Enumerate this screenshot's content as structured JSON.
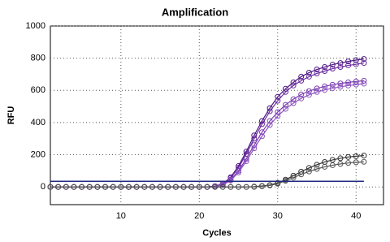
{
  "chart_data": {
    "type": "line",
    "title": "Amplification",
    "x_label": "Cycles",
    "y_label": "RFU",
    "x": [
      1,
      2,
      3,
      4,
      5,
      6,
      7,
      8,
      9,
      10,
      11,
      12,
      13,
      14,
      15,
      16,
      17,
      18,
      19,
      20,
      21,
      22,
      23,
      24,
      25,
      26,
      27,
      28,
      29,
      30,
      31,
      32,
      33,
      34,
      35,
      36,
      37,
      38,
      39,
      40,
      41
    ],
    "series": [
      {
        "color": "#4b1580",
        "values": [
          0,
          0,
          0,
          0,
          0,
          0,
          0,
          0,
          0,
          0,
          0,
          0,
          0,
          0,
          0,
          0,
          0,
          0,
          0,
          0,
          0,
          5,
          20,
          60,
          130,
          220,
          320,
          410,
          490,
          560,
          610,
          650,
          685,
          710,
          730,
          745,
          760,
          770,
          780,
          788,
          795
        ]
      },
      {
        "color": "#6a2aa0",
        "values": [
          0,
          0,
          0,
          0,
          0,
          0,
          0,
          0,
          0,
          0,
          0,
          0,
          0,
          0,
          0,
          0,
          0,
          0,
          0,
          0,
          0,
          4,
          18,
          55,
          120,
          205,
          300,
          390,
          470,
          535,
          590,
          630,
          660,
          685,
          705,
          720,
          735,
          745,
          755,
          762,
          770
        ]
      },
      {
        "color": "#7b3fb0",
        "values": [
          0,
          0,
          0,
          0,
          0,
          0,
          0,
          0,
          0,
          0,
          0,
          0,
          0,
          0,
          0,
          0,
          0,
          0,
          0,
          0,
          0,
          3,
          15,
          45,
          100,
          175,
          260,
          340,
          410,
          465,
          510,
          545,
          575,
          595,
          612,
          625,
          635,
          643,
          650,
          655,
          660
        ]
      },
      {
        "color": "#8e55c0",
        "values": [
          0,
          0,
          0,
          0,
          0,
          0,
          0,
          0,
          0,
          0,
          0,
          0,
          0,
          0,
          0,
          0,
          0,
          0,
          0,
          0,
          0,
          2,
          12,
          40,
          90,
          160,
          240,
          315,
          385,
          440,
          485,
          520,
          550,
          572,
          590,
          603,
          613,
          622,
          630,
          636,
          642
        ]
      },
      {
        "color": "#333333",
        "values": [
          0,
          0,
          0,
          0,
          0,
          0,
          0,
          0,
          0,
          0,
          0,
          0,
          0,
          0,
          0,
          0,
          0,
          0,
          0,
          0,
          0,
          0,
          0,
          0,
          0,
          0,
          2,
          6,
          12,
          25,
          45,
          70,
          95,
          118,
          138,
          155,
          168,
          178,
          186,
          191,
          195
        ]
      },
      {
        "color": "#555555",
        "values": [
          0,
          0,
          0,
          0,
          0,
          0,
          0,
          0,
          0,
          0,
          0,
          0,
          0,
          0,
          0,
          0,
          0,
          0,
          0,
          0,
          0,
          0,
          0,
          0,
          0,
          0,
          0,
          4,
          9,
          20,
          38,
          58,
          78,
          96,
          112,
          125,
          135,
          143,
          149,
          153,
          156
        ]
      }
    ],
    "threshold": 35,
    "threshold_color": "#1f2a80",
    "xlim": [
      1,
      43.5
    ],
    "ylim": [
      -110,
      1000
    ],
    "xticks": [
      10,
      20,
      30,
      40
    ],
    "yticks": [
      0,
      200,
      400,
      600,
      800,
      1000
    ],
    "grid": true
  }
}
